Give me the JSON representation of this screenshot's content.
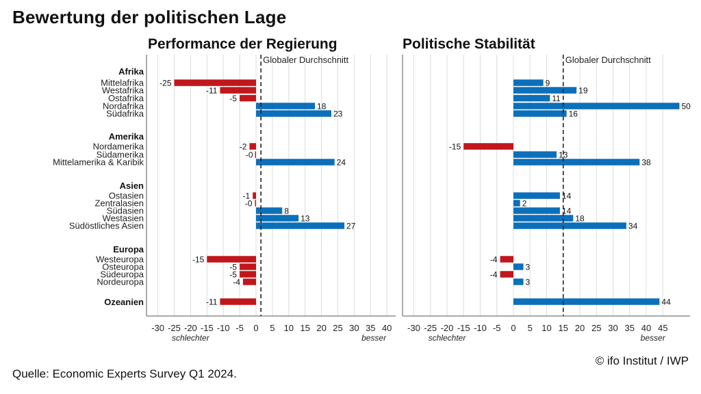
{
  "title": "Bewertung der politischen Lage",
  "source": "Quelle: Economic Experts Survey Q1 2024.",
  "copyright": "© ifo Institut / IWP",
  "colors": {
    "negative": "#c0171c",
    "positive": "#0c6fba",
    "grid": "#dcdcdc",
    "axis": "#555555"
  },
  "chart_data": [
    {
      "type": "bar",
      "orientation": "horizontal",
      "title": "Performance der Regierung",
      "reference_line": {
        "label": "Globaler Durchschnitt",
        "value": 1.5
      },
      "xlim": [
        -33,
        42
      ],
      "xticks": [
        -30,
        -25,
        -20,
        -15,
        -10,
        -5,
        0,
        5,
        10,
        15,
        20,
        25,
        30,
        35,
        40
      ],
      "x_note_left": "schlechter",
      "x_note_right": "besser",
      "groups": [
        {
          "name": "Afrika",
          "items": [
            {
              "label": "Mittelafrika",
              "value": -25,
              "text": "-25"
            },
            {
              "label": "Westafrika",
              "value": -11,
              "text": "-11"
            },
            {
              "label": "Ostafrika",
              "value": -5,
              "text": "-5"
            },
            {
              "label": "Nordafrika",
              "value": 18,
              "text": "18"
            },
            {
              "label": "Südafrika",
              "value": 23,
              "text": "23"
            }
          ]
        },
        {
          "name": "Amerika",
          "items": [
            {
              "label": "Nordamerika",
              "value": -2,
              "text": "-2"
            },
            {
              "label": "Südamerika",
              "value": -0.1,
              "text": "-0"
            },
            {
              "label": "Mittelamerika & Karibik",
              "value": 24,
              "text": "24"
            }
          ]
        },
        {
          "name": "Asien",
          "items": [
            {
              "label": "Ostasien",
              "value": -1,
              "text": "-1"
            },
            {
              "label": "Zentralasien",
              "value": -0.3,
              "text": "-0"
            },
            {
              "label": "Südasien",
              "value": 8,
              "text": "8"
            },
            {
              "label": "Westasien",
              "value": 13,
              "text": "13"
            },
            {
              "label": "Südöstliches Asien",
              "value": 27,
              "text": "27"
            }
          ]
        },
        {
          "name": "Europa",
          "items": [
            {
              "label": "Westeuropa",
              "value": -15,
              "text": "-15"
            },
            {
              "label": "Osteuropa",
              "value": -5,
              "text": "-5"
            },
            {
              "label": "Südeuropa",
              "value": -5,
              "text": "-5"
            },
            {
              "label": "Nordeuropa",
              "value": -4,
              "text": "-4"
            }
          ]
        },
        {
          "name": "Ozeanien",
          "value": -11,
          "text": "-11"
        }
      ]
    },
    {
      "type": "bar",
      "orientation": "horizontal",
      "title": "Politische Stabilität",
      "reference_line": {
        "label": "Globaler Durchschnitt",
        "value": 15
      },
      "xlim": [
        -33,
        52
      ],
      "xticks": [
        -30,
        -25,
        -20,
        -15,
        -10,
        -5,
        0,
        5,
        10,
        15,
        20,
        25,
        30,
        35,
        40,
        45
      ],
      "x_note_left": "schlechter",
      "x_note_right": "besser",
      "groups": [
        {
          "name": "Afrika",
          "items": [
            {
              "label": "Mittelafrika",
              "value": 9,
              "text": "9"
            },
            {
              "label": "Westafrika",
              "value": 19,
              "text": "19"
            },
            {
              "label": "Ostafrika",
              "value": 11,
              "text": "11"
            },
            {
              "label": "Nordafrika",
              "value": 50,
              "text": "50"
            },
            {
              "label": "Südafrika",
              "value": 16,
              "text": "16"
            }
          ]
        },
        {
          "name": "Amerika",
          "items": [
            {
              "label": "Nordamerika",
              "value": -15,
              "text": "-15"
            },
            {
              "label": "Südamerika",
              "value": 13,
              "text": "13"
            },
            {
              "label": "Mittelamerika & Karibik",
              "value": 38,
              "text": "38"
            }
          ]
        },
        {
          "name": "Asien",
          "items": [
            {
              "label": "Ostasien",
              "value": 14,
              "text": "14"
            },
            {
              "label": "Zentralasien",
              "value": 2,
              "text": "2"
            },
            {
              "label": "Südasien",
              "value": 14,
              "text": "14"
            },
            {
              "label": "Westasien",
              "value": 18,
              "text": "18"
            },
            {
              "label": "Südöstliches Asien",
              "value": 34,
              "text": "34"
            }
          ]
        },
        {
          "name": "Europa",
          "items": [
            {
              "label": "Westeuropa",
              "value": -4,
              "text": "-4"
            },
            {
              "label": "Osteuropa",
              "value": 3,
              "text": "3"
            },
            {
              "label": "Südeuropa",
              "value": -4,
              "text": "-4"
            },
            {
              "label": "Nordeuropa",
              "value": 3,
              "text": "3"
            }
          ]
        },
        {
          "name": "Ozeanien",
          "value": 44,
          "text": "44"
        }
      ]
    }
  ]
}
